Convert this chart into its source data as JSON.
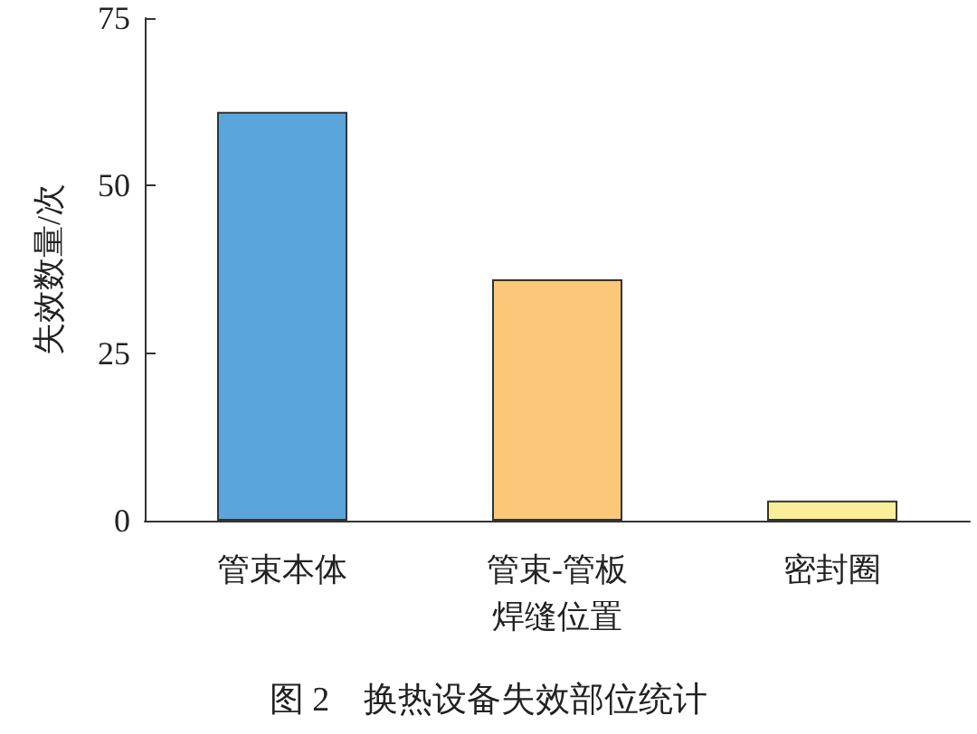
{
  "chart_data": {
    "type": "bar",
    "title": "图 2　换热设备失效部位统计",
    "ylabel": "失效数量/次",
    "categories": [
      "管束本体",
      "管束-管板焊缝位置",
      "密封圈"
    ],
    "values": [
      61,
      36,
      3
    ],
    "colors": [
      "#5aa5dc",
      "#fbc778",
      "#fbee98"
    ],
    "ylim": [
      0,
      75
    ],
    "yticks": [
      0,
      25,
      50,
      75
    ],
    "grid": false
  }
}
